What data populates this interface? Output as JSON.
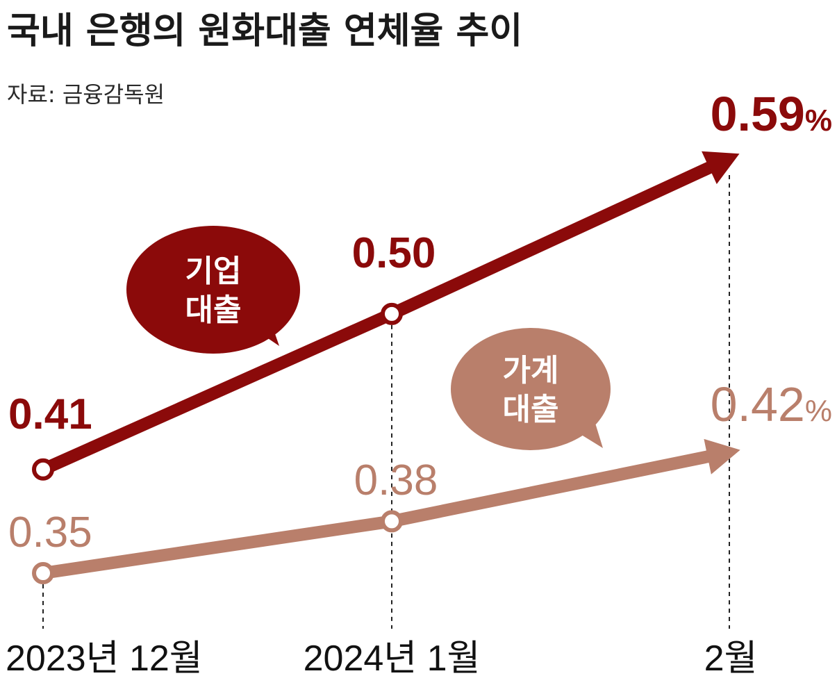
{
  "chart_data": {
    "type": "line",
    "title": "국내 은행의 원화대출 연체율 추이",
    "subtitle": "자료: 금융감독원",
    "categories": [
      "2023년 12월",
      "2024년 1월",
      "2월"
    ],
    "series": [
      {
        "name": "기업 대출",
        "name_lines": [
          "기업",
          "대출"
        ],
        "values": [
          0.41,
          0.5,
          0.59
        ],
        "labels": [
          "0.41",
          "0.50",
          "0.59"
        ],
        "last_suffix": "%",
        "color": "#8b0a0a"
      },
      {
        "name": "가계 대출",
        "name_lines": [
          "가계",
          "대출"
        ],
        "values": [
          0.35,
          0.38,
          0.42
        ],
        "labels": [
          "0.35",
          "0.38",
          "0.42"
        ],
        "last_suffix": "%",
        "color": "#b97f6b"
      }
    ],
    "grid": false,
    "legend": "speech-bubbles"
  }
}
